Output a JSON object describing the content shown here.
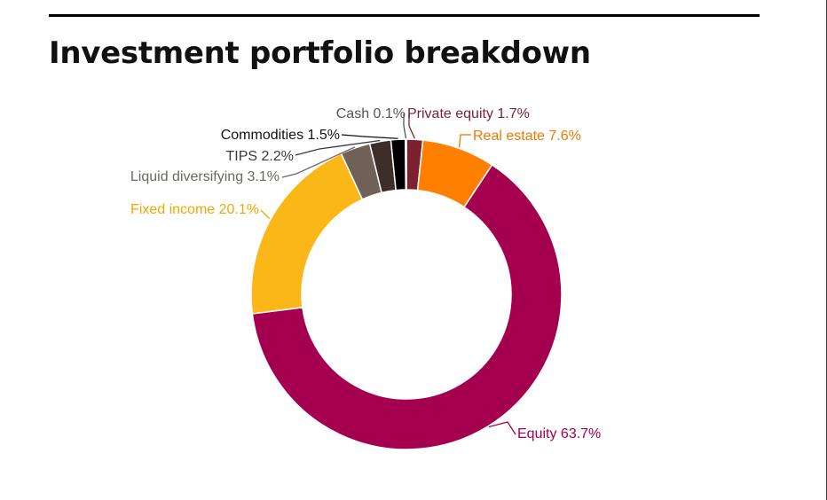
{
  "chart_data": {
    "type": "pie",
    "title": "Investment portfolio breakdown",
    "style": "donut",
    "categories": [
      "Private equity",
      "Real estate",
      "Equity",
      "Fixed income",
      "Liquid diversifying",
      "TIPS",
      "Commodities",
      "Cash"
    ],
    "values": [
      1.7,
      7.6,
      63.7,
      20.1,
      3.1,
      2.2,
      1.5,
      0.1
    ],
    "unit": "%",
    "labels": [
      "Private equity  1.7%",
      "Real estate 7.6%",
      "Equity 63.7%",
      "Fixed income 20.1%",
      "Liquid diversifying  3.1%",
      "TIPS 2.2%",
      "Commodities 1.5%",
      "Cash 0.1%"
    ],
    "colors": [
      "#7b2130",
      "#ff8000",
      "#a4004f",
      "#fbb718",
      "#706259",
      "#3d2e2a",
      "#000000",
      "#5a4a44"
    ],
    "label_colors": [
      "#7b2130",
      "#f07800",
      "#a4004f",
      "#f5a600",
      "#6f6762",
      "#3a3a3a",
      "#111111",
      "#555555"
    ],
    "legend": "none"
  }
}
